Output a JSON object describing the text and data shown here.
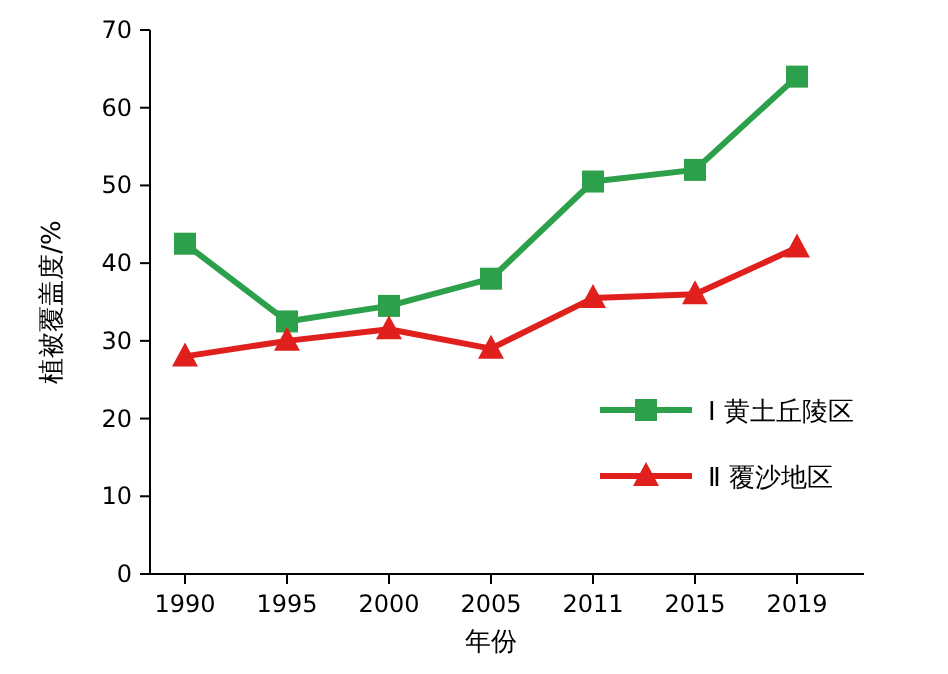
{
  "chart_data": {
    "type": "line",
    "xlabel": "年份",
    "ylabel": "植被覆盖度/%",
    "categories": [
      "1990",
      "1995",
      "2000",
      "2005",
      "2011",
      "2015",
      "2019"
    ],
    "series": [
      {
        "name": "Ⅰ 黄土丘陵区",
        "color": "#2ca04a",
        "marker": "square",
        "values": [
          42.5,
          32.5,
          34.5,
          38,
          50.5,
          52,
          64
        ]
      },
      {
        "name": "Ⅱ 覆沙地区",
        "color": "#e0201c",
        "marker": "triangle",
        "values": [
          28,
          30,
          31.5,
          29,
          35.5,
          36,
          42
        ]
      }
    ],
    "ylim": [
      0,
      70
    ],
    "yticks": [
      0,
      10,
      20,
      30,
      40,
      50,
      60,
      70
    ],
    "grid": false,
    "legend": "right",
    "line_style": "solid"
  }
}
